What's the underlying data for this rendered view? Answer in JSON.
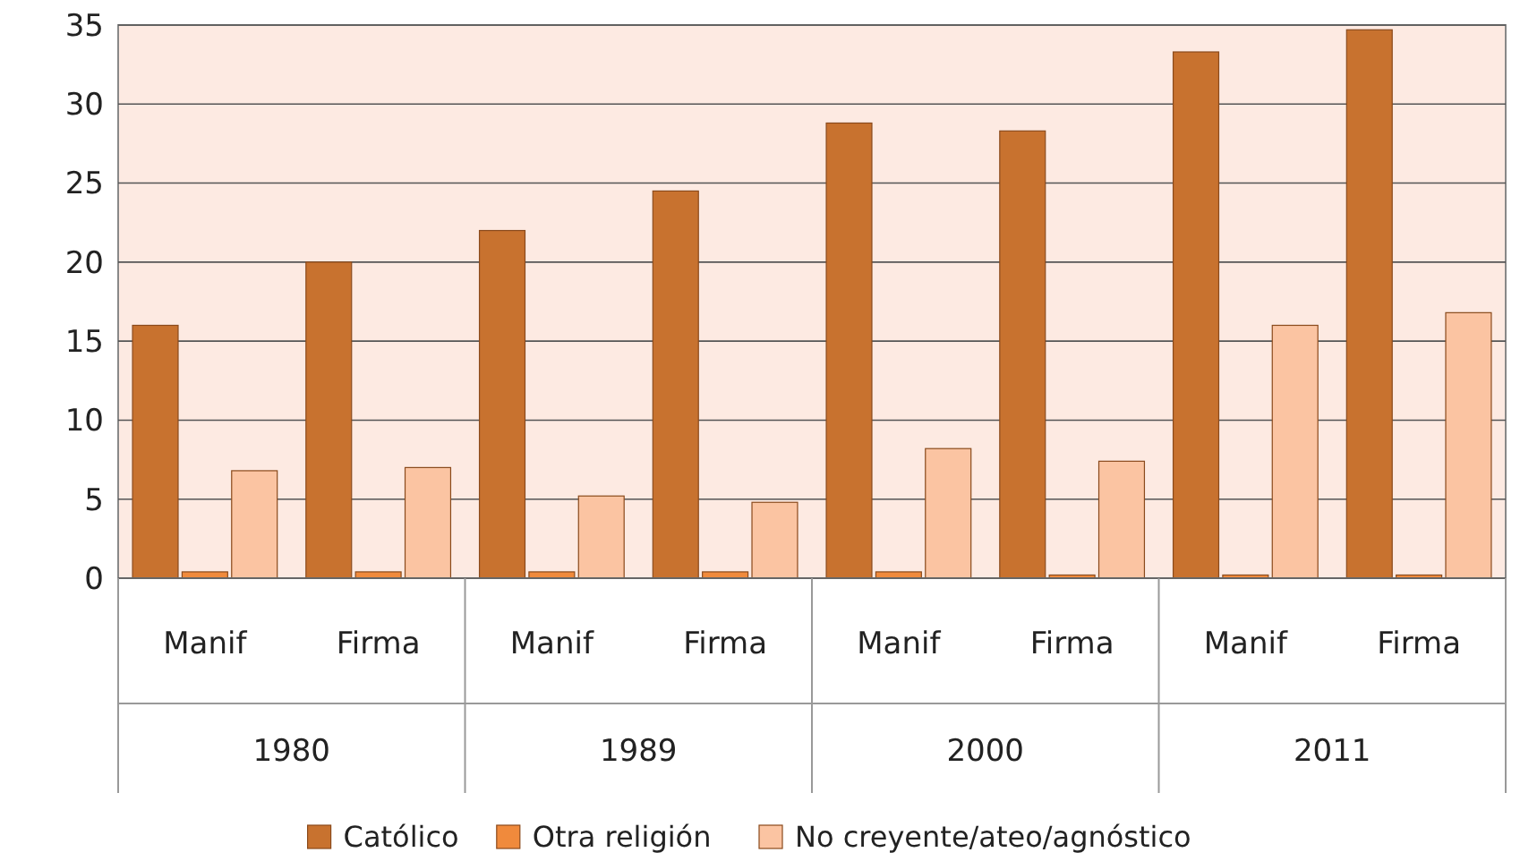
{
  "chart_data": {
    "type": "bar",
    "categories": [
      "Manif",
      "Firma",
      "Manif",
      "Firma",
      "Manif",
      "Firma",
      "Manif",
      "Firma"
    ],
    "annotations": [
      "1980",
      "1989",
      "2000",
      "2011"
    ],
    "series": [
      {
        "name": "Católico",
        "color": "#c8722f",
        "values": [
          16,
          20,
          22,
          24.5,
          28.8,
          28.3,
          33.3,
          34.7
        ]
      },
      {
        "name": "Otra religión",
        "color": "#f08a3c",
        "values": [
          0.4,
          0.4,
          0.4,
          0.4,
          0.4,
          0.2,
          0.2,
          0.2
        ]
      },
      {
        "name": "No creyente/ateo/agnóstico",
        "color": "#fbc4a2",
        "values": [
          6.8,
          7,
          5.2,
          4.8,
          8.2,
          7.4,
          16,
          16.8
        ]
      }
    ],
    "ylim": [
      0,
      35
    ],
    "yticks": [
      0,
      5,
      10,
      15,
      20,
      25,
      30,
      35
    ],
    "grid": "y",
    "legend": "bottom"
  }
}
